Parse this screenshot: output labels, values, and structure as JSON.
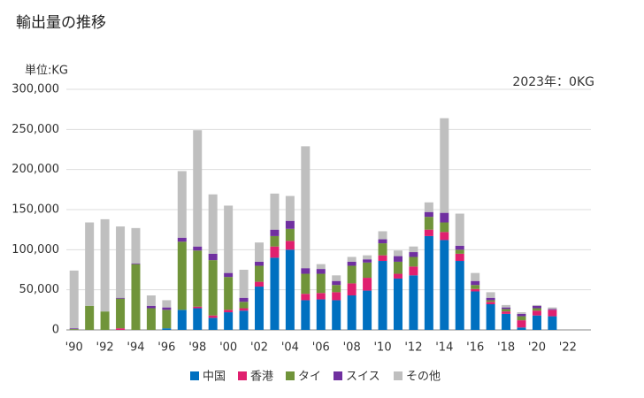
{
  "chart_data": {
    "type": "stacked_bar",
    "title": "輸出量の推移",
    "unit_label": "単位:KG",
    "annotation": "2023年：0KG",
    "categories": [
      "'90",
      null,
      "'92",
      null,
      "'94",
      null,
      "'96",
      null,
      "'98",
      null,
      "'00",
      null,
      "'02",
      null,
      "'04",
      null,
      "'06",
      null,
      "'08",
      null,
      "'10",
      null,
      "'12",
      null,
      "'14",
      null,
      "'16",
      null,
      "'18",
      null,
      "'20",
      null,
      "'22",
      null
    ],
    "series": [
      {
        "name": "中国",
        "color": "#0070c0",
        "values": [
          0,
          0,
          0,
          0,
          0,
          0,
          2000,
          25000,
          27000,
          15000,
          22000,
          24000,
          54000,
          90000,
          100000,
          37000,
          38000,
          37000,
          43000,
          49000,
          86000,
          64000,
          68000,
          117000,
          112000,
          86000,
          48000,
          32000,
          20000,
          3000,
          18000,
          17000,
          0,
          0
        ]
      },
      {
        "name": "香港",
        "color": "#e0206f",
        "values": [
          0,
          0,
          0,
          2000,
          0,
          0,
          0,
          0,
          2000,
          3000,
          3000,
          3000,
          6000,
          14000,
          11000,
          8000,
          8000,
          10000,
          15000,
          16000,
          7000,
          6000,
          11000,
          8000,
          10000,
          9000,
          3000,
          3000,
          3000,
          9000,
          6000,
          8000,
          0,
          0
        ]
      },
      {
        "name": "タイ",
        "color": "#70943a",
        "values": [
          1000,
          30000,
          23000,
          37000,
          82000,
          27000,
          23000,
          85000,
          70000,
          69000,
          41000,
          8000,
          20000,
          13000,
          15000,
          25000,
          24000,
          9000,
          22000,
          19000,
          15000,
          15000,
          12000,
          16000,
          12000,
          5000,
          5000,
          2000,
          3000,
          5000,
          3000,
          0,
          0,
          0
        ]
      },
      {
        "name": "スイス",
        "color": "#7030a0",
        "values": [
          1000,
          0,
          0,
          1000,
          1000,
          3000,
          3000,
          5000,
          5000,
          8000,
          5000,
          5000,
          5000,
          8000,
          10000,
          7000,
          6000,
          5000,
          5000,
          4000,
          5000,
          7000,
          6000,
          6000,
          12000,
          5000,
          5000,
          3000,
          2000,
          3000,
          3000,
          1000,
          0,
          0
        ]
      },
      {
        "name": "その他",
        "color": "#bfbfbf",
        "values": [
          72000,
          104000,
          115000,
          89000,
          44000,
          13000,
          9000,
          83000,
          145000,
          74000,
          84000,
          35000,
          24000,
          45000,
          31000,
          152000,
          6000,
          7000,
          6000,
          5000,
          10000,
          7000,
          7000,
          12000,
          118000,
          40000,
          10000,
          7000,
          3000,
          2000,
          1000,
          2000,
          0,
          0
        ]
      }
    ],
    "ylim": [
      0,
      300000
    ],
    "yticks": [
      0,
      {
        "value": 50000,
        "label": "50,000"
      },
      {
        "value": 100000,
        "label": "100,000"
      },
      {
        "value": 150000,
        "label": "150,000"
      },
      {
        "value": 200000,
        "label": "200,000"
      },
      {
        "value": 250000,
        "label": "250,000"
      },
      {
        "value": 300000,
        "label": "300,000"
      }
    ],
    "grid": true
  }
}
